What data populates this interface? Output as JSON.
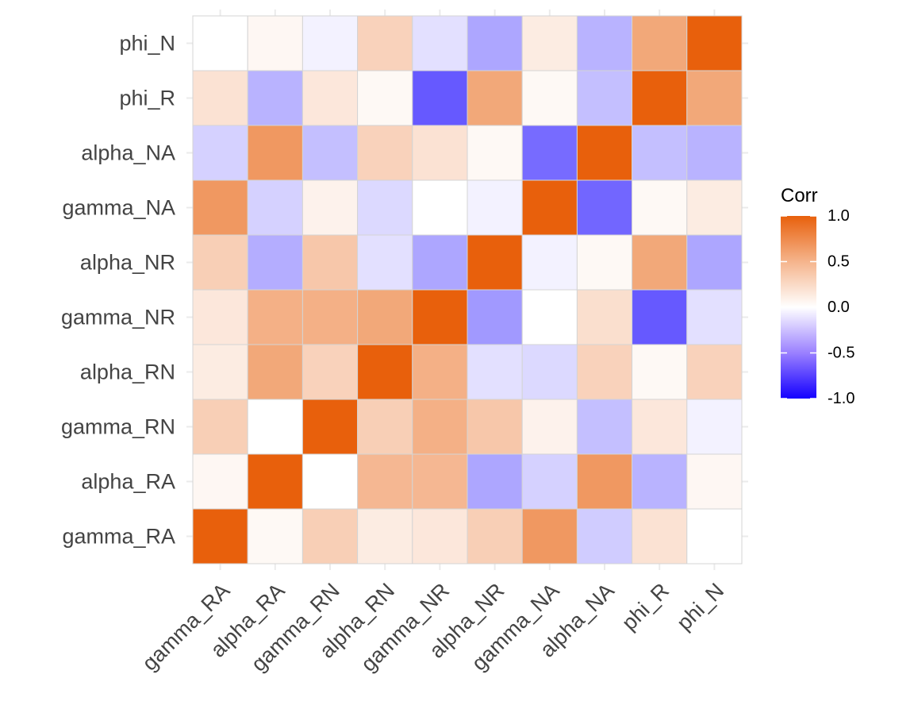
{
  "chart_data": {
    "type": "heatmap",
    "title": "",
    "xlabel": "",
    "ylabel": "",
    "x_categories": [
      "gamma_RA",
      "alpha_RA",
      "gamma_RN",
      "alpha_RN",
      "gamma_NR",
      "alpha_NR",
      "gamma_NA",
      "alpha_NA",
      "phi_R",
      "phi_N"
    ],
    "y_categories": [
      "gamma_RA",
      "alpha_RA",
      "gamma_RN",
      "alpha_RN",
      "gamma_NR",
      "alpha_NR",
      "gamma_NA",
      "alpha_NA",
      "phi_R",
      "phi_N"
    ],
    "values": [
      [
        1.0,
        0.04,
        0.3,
        0.12,
        0.15,
        0.3,
        0.65,
        -0.2,
        0.18,
        0.0
      ],
      [
        0.05,
        1.0,
        0.0,
        0.45,
        0.45,
        -0.35,
        -0.18,
        0.65,
        -0.3,
        0.05
      ],
      [
        0.3,
        0.0,
        1.0,
        0.3,
        0.5,
        0.35,
        0.08,
        -0.25,
        0.15,
        -0.05
      ],
      [
        0.12,
        0.55,
        0.28,
        1.0,
        0.5,
        -0.12,
        -0.15,
        0.28,
        0.04,
        0.28
      ],
      [
        0.15,
        0.5,
        0.5,
        0.55,
        1.0,
        -0.4,
        0.0,
        0.2,
        -0.65,
        -0.12
      ],
      [
        0.3,
        -0.32,
        0.35,
        -0.12,
        -0.35,
        1.0,
        -0.05,
        0.04,
        0.55,
        -0.35
      ],
      [
        0.65,
        -0.18,
        0.08,
        -0.15,
        0.0,
        -0.05,
        1.0,
        -0.6,
        0.04,
        0.12
      ],
      [
        -0.18,
        0.65,
        -0.25,
        0.28,
        0.18,
        0.04,
        -0.58,
        1.0,
        -0.25,
        -0.3
      ],
      [
        0.18,
        -0.3,
        0.15,
        0.04,
        -0.65,
        0.55,
        0.04,
        -0.25,
        1.0,
        0.55
      ],
      [
        0.0,
        0.05,
        -0.05,
        0.28,
        -0.12,
        -0.35,
        0.12,
        -0.3,
        0.55,
        1.0
      ]
    ],
    "zlim": [
      -1.0,
      1.0
    ],
    "grid": true,
    "legend": {
      "title": "Corr",
      "position": "right",
      "ticks": [
        1.0,
        0.5,
        0.0,
        -0.5,
        -1.0
      ],
      "tick_labels": [
        "1.0",
        "0.5",
        "0.0",
        "-0.5",
        "-1.0"
      ]
    },
    "colors": {
      "high": "#e8600c",
      "mid": "#ffffff",
      "low": "#1400ff",
      "border": "#d4d4d4",
      "grid": "#ebebeb"
    }
  }
}
